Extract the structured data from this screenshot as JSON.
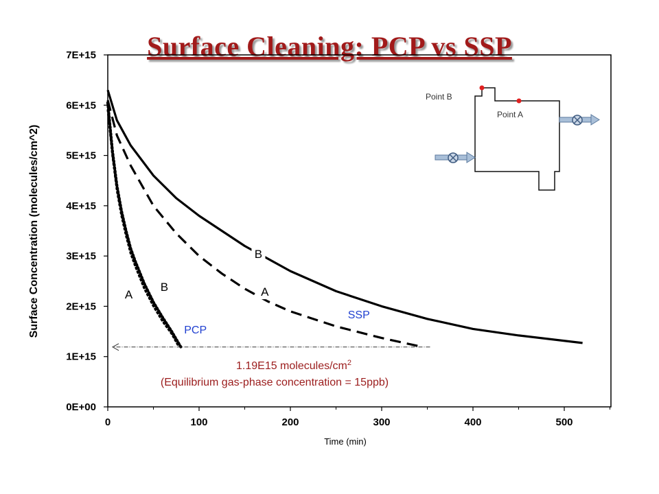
{
  "slide_title": "Surface Cleaning:  PCP vs SSP",
  "chart_data": {
    "type": "line",
    "title": "",
    "xlabel": "Time (min)",
    "ylabel": "Surface Concentration (molecules/cm^2)",
    "xlim": [
      0,
      550
    ],
    "ylim": [
      0,
      7000000000000000.0
    ],
    "x_ticks": [
      "0",
      "100",
      "200",
      "300",
      "400",
      "500"
    ],
    "y_ticks": [
      "0E+00",
      "1E+15",
      "2E+15",
      "3E+15",
      "4E+15",
      "5E+15",
      "6E+15",
      "7E+15"
    ],
    "grid": false,
    "series": [
      {
        "name": "",
        "style": "solid",
        "x": [
          0,
          10,
          25,
          50,
          75,
          100,
          150,
          200,
          250,
          300,
          350,
          400,
          450,
          520
        ],
        "y": [
          6300000000000000.0,
          5700000000000000.0,
          5200000000000000.0,
          4600000000000000.0,
          4150000000000000.0,
          3800000000000000.0,
          3200000000000000.0,
          2700000000000000.0,
          2300000000000000.0,
          2000000000000000.0,
          1750000000000000.0,
          1550000000000000.0,
          1420000000000000.0,
          1270000000000000.0
        ]
      },
      {
        "name": "",
        "style": "dashed",
        "x": [
          0,
          10,
          25,
          50,
          75,
          100,
          125,
          150,
          175,
          200,
          250,
          300,
          345
        ],
        "y": [
          6100000000000000.0,
          5400000000000000.0,
          4800000000000000.0,
          4000000000000000.0,
          3450000000000000.0,
          3000000000000000.0,
          2650000000000000.0,
          2350000000000000.0,
          2100000000000000.0,
          1900000000000000.0,
          1600000000000000.0,
          1370000000000000.0,
          1190000000000000.0
        ]
      },
      {
        "name": "",
        "style": "dotted",
        "x": [
          0,
          5,
          10,
          15,
          20,
          25,
          30,
          40,
          50,
          60,
          70,
          78
        ],
        "y": [
          5900000000000000.0,
          5000000000000000.0,
          4300000000000000.0,
          3800000000000000.0,
          3400000000000000.0,
          3050000000000000.0,
          2800000000000000.0,
          2350000000000000.0,
          2000000000000000.0,
          1700000000000000.0,
          1450000000000000.0,
          1190000000000000.0
        ]
      },
      {
        "name": "",
        "style": "dotted-heavy",
        "x": [
          0,
          5,
          10,
          15,
          20,
          25,
          30,
          40,
          50,
          60,
          70,
          80
        ],
        "y": [
          6050000000000000.0,
          5100000000000000.0,
          4400000000000000.0,
          3900000000000000.0,
          3500000000000000.0,
          3150000000000000.0,
          2900000000000000.0,
          2450000000000000.0,
          2080000000000000.0,
          1780000000000000.0,
          1500000000000000.0,
          1190000000000000.0
        ]
      }
    ],
    "curve_labels": [
      {
        "text": "B",
        "x": 165,
        "y": 3000000000000000.0
      },
      {
        "text": "A",
        "x": 172,
        "y": 2250000000000000.0
      },
      {
        "text": "B",
        "x": 62,
        "y": 2350000000000000.0
      },
      {
        "text": "A",
        "x": 23,
        "y": 2200000000000000.0
      }
    ],
    "series_labels": [
      {
        "text": "SSP",
        "x": 275,
        "y": 1800000000000000.0
      },
      {
        "text": "PCP",
        "x": 96,
        "y": 1500000000000000.0
      }
    ],
    "equilibrium": {
      "y": 1190000000000000.0,
      "x_from": 353,
      "x_to": 0,
      "line1": "1.19E15 molecules/cm",
      "line1_sup": "2",
      "line2": "(Equilibrium gas-phase concentration = 15ppb)"
    },
    "inset": {
      "point_b_label": "Point B",
      "point_a_label": "Point A",
      "point_color": "#e02020",
      "pipe_color": "#8fa8c8"
    }
  }
}
